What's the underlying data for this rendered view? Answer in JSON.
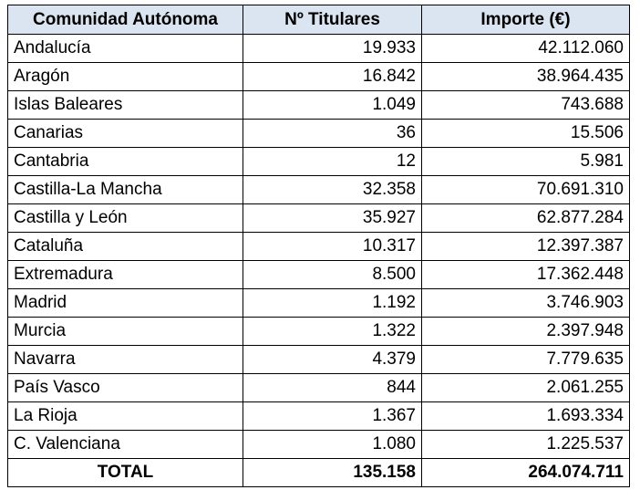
{
  "table": {
    "header": [
      "Comunidad Autónoma",
      "Nº Titulares",
      "Importe (€)"
    ],
    "rows": [
      [
        "Andalucía",
        "19.933",
        "42.112.060"
      ],
      [
        "Aragón",
        "16.842",
        "38.964.435"
      ],
      [
        "Islas Baleares",
        "1.049",
        "743.688"
      ],
      [
        "Canarias",
        "36",
        "15.506"
      ],
      [
        "Cantabria",
        "12",
        "5.981"
      ],
      [
        "Castilla-La Mancha",
        "32.358",
        "70.691.310"
      ],
      [
        "Castilla y León",
        "35.927",
        "62.877.284"
      ],
      [
        "Cataluña",
        "10.317",
        "12.397.387"
      ],
      [
        "Extremadura",
        "8.500",
        "17.362.448"
      ],
      [
        "Madrid",
        "1.192",
        "3.746.903"
      ],
      [
        "Murcia",
        "1.322",
        "2.397.948"
      ],
      [
        "Navarra",
        "4.379",
        "7.779.635"
      ],
      [
        "País Vasco",
        "844",
        "2.061.255"
      ],
      [
        "La Rioja",
        "1.367",
        "1.693.334"
      ],
      [
        "C. Valenciana",
        "1.080",
        "1.225.537"
      ]
    ],
    "total": [
      "TOTAL",
      "135.158",
      "264.074.711"
    ]
  }
}
